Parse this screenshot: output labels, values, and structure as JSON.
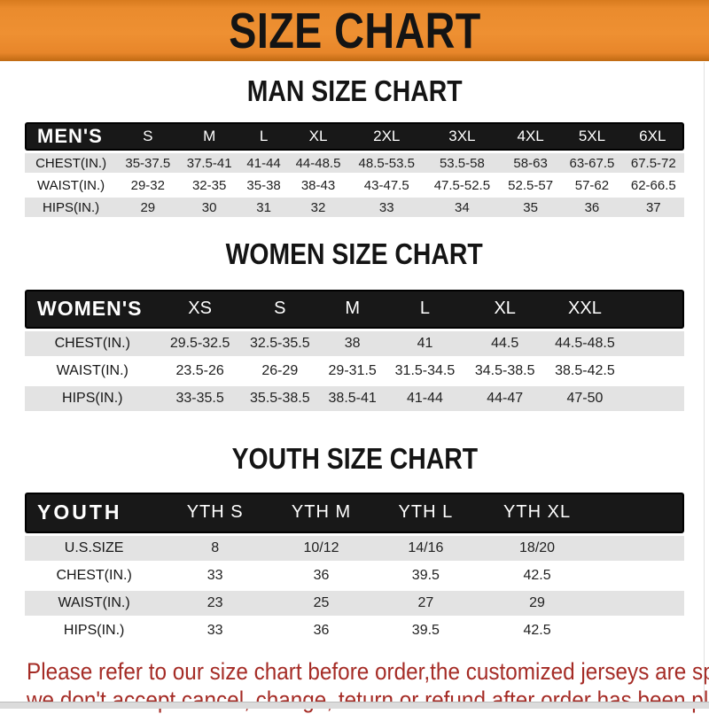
{
  "banner": {
    "title": "SIZE CHART"
  },
  "men": {
    "heading": "MAN SIZE CHART",
    "group_label": "MEN'S",
    "sizes": [
      "S",
      "M",
      "L",
      "XL",
      "2XL",
      "3XL",
      "4XL",
      "5XL",
      "6XL"
    ],
    "rows": [
      {
        "label": "CHEST(IN.)",
        "values": [
          "35-37.5",
          "37.5-41",
          "41-44",
          "44-48.5",
          "48.5-53.5",
          "53.5-58",
          "58-63",
          "63-67.5",
          "67.5-72"
        ]
      },
      {
        "label": "WAIST(IN.)",
        "values": [
          "29-32",
          "32-35",
          "35-38",
          "38-43",
          "43-47.5",
          "47.5-52.5",
          "52.5-57",
          "57-62",
          "62-66.5"
        ]
      },
      {
        "label": "HIPS(IN.)",
        "values": [
          "29",
          "30",
          "31",
          "32",
          "33",
          "34",
          "35",
          "36",
          "37"
        ]
      }
    ]
  },
  "women": {
    "heading": "WOMEN SIZE CHART",
    "group_label": "WOMEN'S",
    "sizes": [
      "XS",
      "S",
      "M",
      "L",
      "XL",
      "XXL"
    ],
    "rows": [
      {
        "label": "CHEST(IN.)",
        "values": [
          "29.5-32.5",
          "32.5-35.5",
          "38",
          "41",
          "44.5",
          "44.5-48.5"
        ]
      },
      {
        "label": "WAIST(IN.)",
        "values": [
          "23.5-26",
          "26-29",
          "29-31.5",
          "31.5-34.5",
          "34.5-38.5",
          "38.5-42.5"
        ]
      },
      {
        "label": "HIPS(IN.)",
        "values": [
          "33-35.5",
          "35.5-38.5",
          "38.5-41",
          "41-44",
          "44-47",
          "47-50"
        ]
      }
    ]
  },
  "youth": {
    "heading": "YOUTH SIZE CHART",
    "group_label": "YOUTH",
    "sizes": [
      "YTH S",
      "YTH M",
      "YTH L",
      "YTH XL"
    ],
    "rows": [
      {
        "label": "U.S.SIZE",
        "values": [
          "8",
          "10/12",
          "14/16",
          "18/20"
        ]
      },
      {
        "label": "CHEST(IN.)",
        "values": [
          "33",
          "36",
          "39.5",
          "42.5"
        ]
      },
      {
        "label": "WAIST(IN.)",
        "values": [
          "23",
          "25",
          "27",
          "29"
        ]
      },
      {
        "label": "HIPS(IN.)",
        "values": [
          "33",
          "36",
          "39.5",
          "42.5"
        ]
      }
    ]
  },
  "footer": {
    "line1": "Please refer to our size chart before order,the customized jerseys are special products,",
    "line2": "we don't accept cancel, change, teturn or refund after order has been placed!"
  },
  "colors": {
    "accent_orange": "#ec8d2f",
    "bar_black": "#181818",
    "row_gray": "#e3e3e3",
    "notice_red": "#a52c26"
  }
}
